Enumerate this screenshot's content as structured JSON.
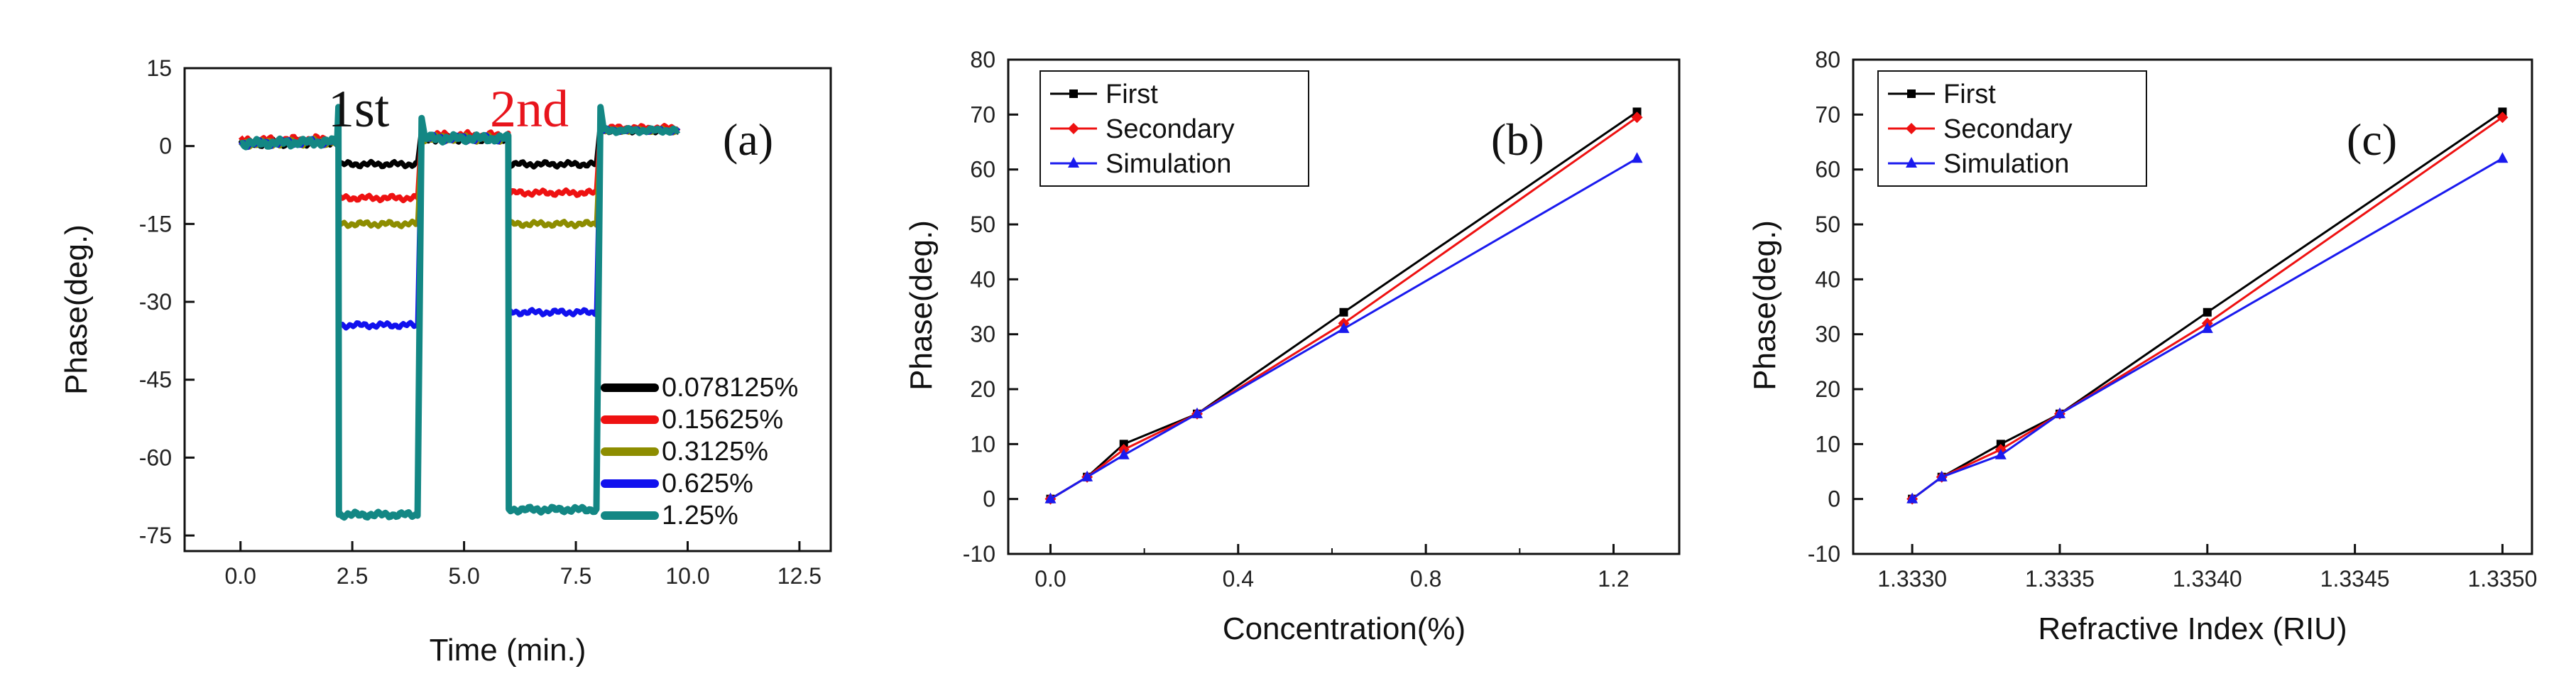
{
  "chart_data": [
    {
      "type": "line",
      "panel_label": "(a)",
      "xlabel": "Time (min.)",
      "ylabel": "Phase(deg.)",
      "xlim": [
        -1.25,
        13.2
      ],
      "ylim": [
        -78,
        15
      ],
      "xticks": [
        "0.0",
        "2.5",
        "5.0",
        "7.5",
        "10.0",
        "12.5"
      ],
      "xtick_values": [
        0,
        2.5,
        5.0,
        7.5,
        10.0,
        12.5
      ],
      "yticks": [
        "15",
        "0",
        "-15",
        "-30",
        "-45",
        "-60",
        "-75"
      ],
      "ytick_values": [
        15,
        0,
        -15,
        -30,
        -45,
        -60,
        -75
      ],
      "annotations": [
        {
          "text": "1st",
          "color": "#111111",
          "x": 2.2,
          "y": 1
        },
        {
          "text": "2nd",
          "color": "#e8141c",
          "x": 6.8,
          "y": 1
        }
      ],
      "segments": {
        "drop1": [
          2.2,
          4.0
        ],
        "drop2": [
          6.0,
          8.0
        ],
        "end": 9.8
      },
      "series": [
        {
          "name": "0.078125%",
          "color": "#000000",
          "baseline": 0.5,
          "level1": -3.5,
          "level2": -3.5,
          "spike": 4
        },
        {
          "name": "0.15625%",
          "color": "#ee1111",
          "baseline": 1.0,
          "level1": -10,
          "level2": -9,
          "spike": 3
        },
        {
          "name": "0.3125%",
          "color": "#8d8d00",
          "baseline": 0.5,
          "level1": -15,
          "level2": -15,
          "spike": 2
        },
        {
          "name": "0.625%",
          "color": "#1111ee",
          "baseline": 0.5,
          "level1": -34.5,
          "level2": -32,
          "spike": 4
        },
        {
          "name": "1.25%",
          "color": "#138784",
          "baseline": 0.5,
          "level1": -71,
          "level2": -70,
          "spike": 7
        }
      ]
    },
    {
      "type": "line",
      "panel_label": "(b)",
      "xlabel": "Concentration(%)",
      "ylabel": "Phase(deg.)",
      "xlim": [
        -0.09,
        1.34
      ],
      "ylim": [
        -10,
        80
      ],
      "xticks": [
        "0.0",
        "0.4",
        "0.8",
        "1.2"
      ],
      "xtick_values": [
        0.0,
        0.4,
        0.8,
        1.2
      ],
      "yticks": [
        "80",
        "70",
        "60",
        "50",
        "40",
        "30",
        "20",
        "10",
        "0",
        "-10"
      ],
      "ytick_values": [
        80,
        70,
        60,
        50,
        40,
        30,
        20,
        10,
        0,
        -10
      ],
      "x": [
        0.0,
        0.078125,
        0.15625,
        0.3125,
        0.625,
        1.25
      ],
      "series": [
        {
          "name": "First",
          "color": "#000000",
          "marker": "square",
          "values": [
            0,
            4,
            10,
            15.5,
            34,
            70.5
          ]
        },
        {
          "name": "Secondary",
          "color": "#ee1111",
          "marker": "diamond",
          "values": [
            0,
            4,
            9,
            15.5,
            32,
            69.5
          ]
        },
        {
          "name": "Simulation",
          "color": "#1a1aee",
          "marker": "triangle",
          "values": [
            0,
            4,
            8,
            15.5,
            31,
            62
          ]
        }
      ]
    },
    {
      "type": "line",
      "panel_label": "(c)",
      "xlabel": "Refractive Index (RIU)",
      "ylabel": "Phase(deg.)",
      "xlim": [
        1.3328,
        1.3351
      ],
      "ylim": [
        -10,
        80
      ],
      "xticks": [
        "1.3330",
        "1.3335",
        "1.3340",
        "1.3345",
        "1.3350"
      ],
      "xtick_values": [
        1.333,
        1.3335,
        1.334,
        1.3345,
        1.335
      ],
      "yticks": [
        "80",
        "70",
        "60",
        "50",
        "40",
        "30",
        "20",
        "10",
        "0",
        "-10"
      ],
      "ytick_values": [
        80,
        70,
        60,
        50,
        40,
        30,
        20,
        10,
        0,
        -10
      ],
      "x": [
        1.333,
        1.3331,
        1.3333,
        1.3335,
        1.334,
        1.335
      ],
      "series": [
        {
          "name": "First",
          "color": "#000000",
          "marker": "square",
          "values": [
            0,
            4,
            10,
            15.5,
            34,
            70.5
          ]
        },
        {
          "name": "Secondary",
          "color": "#ee1111",
          "marker": "diamond",
          "values": [
            0,
            4,
            9,
            15.5,
            32,
            69.5
          ]
        },
        {
          "name": "Simulation",
          "color": "#1a1aee",
          "marker": "triangle",
          "values": [
            0,
            4,
            8,
            15.5,
            31,
            62
          ]
        }
      ]
    }
  ]
}
